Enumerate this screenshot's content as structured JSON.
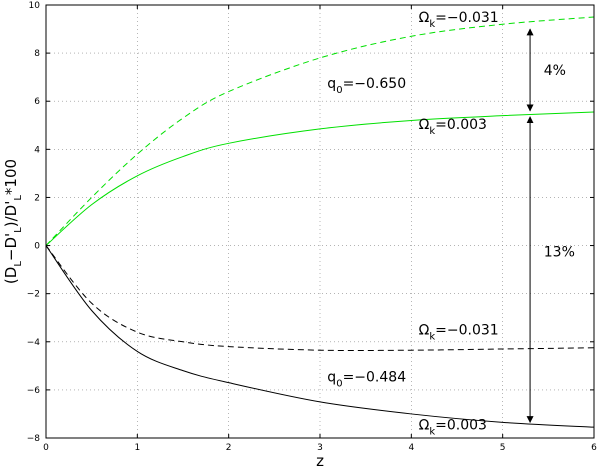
{
  "chart_data": {
    "type": "line",
    "xlabel": "z",
    "ylabel_parts": [
      "(D",
      "L",
      "−D'",
      "L",
      ")/D'",
      "L",
      "*100"
    ],
    "xlim": [
      0,
      6
    ],
    "ylim": [
      -8,
      10
    ],
    "xticks": [
      0,
      1,
      2,
      3,
      4,
      5,
      6
    ],
    "yticks": [
      -8,
      -6,
      -4,
      -2,
      0,
      2,
      4,
      6,
      8,
      10
    ],
    "grid": true,
    "series": [
      {
        "color": "#00e000",
        "dash": "6,4",
        "x": [
          0,
          0.5,
          1.0,
          1.5,
          2.0,
          3.0,
          4.0,
          5.0,
          6.0
        ],
        "y": [
          0,
          2.0,
          3.8,
          5.3,
          6.4,
          7.8,
          8.7,
          9.2,
          9.5
        ]
      },
      {
        "color": "#00e000",
        "dash": "",
        "x": [
          0,
          0.5,
          1.0,
          1.5,
          2.0,
          3.0,
          4.0,
          5.0,
          6.0
        ],
        "y": [
          0,
          1.7,
          2.9,
          3.7,
          4.25,
          4.85,
          5.2,
          5.4,
          5.55
        ]
      },
      {
        "color": "#000000",
        "dash": "6,4",
        "x": [
          0,
          0.5,
          1.0,
          1.5,
          2.0,
          3.0,
          4.0,
          5.0,
          6.0
        ],
        "y": [
          0,
          -2.4,
          -3.6,
          -4.0,
          -4.2,
          -4.35,
          -4.35,
          -4.3,
          -4.25
        ]
      },
      {
        "color": "#000000",
        "dash": "",
        "x": [
          0,
          0.5,
          1.0,
          1.5,
          2.0,
          3.0,
          4.0,
          5.0,
          6.0
        ],
        "y": [
          0,
          -2.7,
          -4.4,
          -5.2,
          -5.7,
          -6.5,
          -7.0,
          -7.35,
          -7.55
        ]
      }
    ],
    "annotations": [
      {
        "omega": "Ω",
        "sub": "k",
        "value": "=−0.031",
        "x": 4.08,
        "y": 9.3
      },
      {
        "omega": "",
        "prefix": "q",
        "sub": "0",
        "value": "=−0.650",
        "x": 3.08,
        "y": 6.55
      },
      {
        "omega": "Ω",
        "sub": "k",
        "value": "=0.003",
        "x": 4.08,
        "y": 4.85
      },
      {
        "omega": "Ω",
        "sub": "k",
        "value": "=−0.031",
        "x": 4.08,
        "y": -3.7
      },
      {
        "omega": "",
        "prefix": "q",
        "sub": "0",
        "value": "=−0.484",
        "x": 3.08,
        "y": -5.65
      },
      {
        "omega": "Ω",
        "sub": "k",
        "value": "=0.003",
        "x": 4.08,
        "y": -7.65
      }
    ],
    "arrows": [
      {
        "x": 5.3,
        "y1": 9.0,
        "y2": 5.6,
        "label": "4%",
        "label_x": 5.45,
        "label_y": 7.1
      },
      {
        "x": 5.3,
        "y1": 5.35,
        "y2": -7.35,
        "label": "13%",
        "label_x": 5.45,
        "label_y": -0.45
      }
    ]
  }
}
